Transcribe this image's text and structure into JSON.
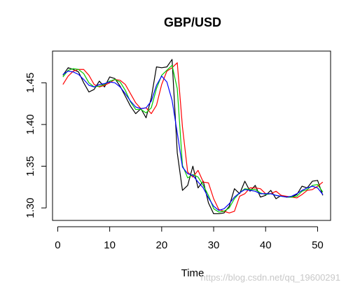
{
  "chart_data": {
    "type": "line",
    "title": "GBP/USD",
    "xlabel": "Time",
    "ylabel": "",
    "xlim": [
      -1,
      52.5
    ],
    "ylim": [
      1.285,
      1.488
    ],
    "xticks": [
      0,
      10,
      20,
      30,
      40,
      50
    ],
    "yticks": [
      1.3,
      1.35,
      1.4,
      1.45
    ],
    "xtick_labels": [
      "0",
      "10",
      "20",
      "30",
      "40",
      "50"
    ],
    "ytick_labels": [
      "1.30",
      "1.35",
      "1.40",
      "1.45"
    ],
    "grid": false,
    "legend": "none",
    "x": [
      1,
      2,
      3,
      4,
      5,
      6,
      7,
      8,
      9,
      10,
      11,
      12,
      13,
      14,
      15,
      16,
      17,
      18,
      19,
      20,
      21,
      22,
      23,
      24,
      25,
      26,
      27,
      28,
      29,
      30,
      31,
      32,
      33,
      34,
      35,
      36,
      37,
      38,
      39,
      40,
      41,
      42,
      43,
      44,
      45,
      46,
      47,
      48,
      49,
      50,
      51
    ],
    "series": [
      {
        "color": "#000000",
        "values": [
          1.459,
          1.468,
          1.466,
          1.463,
          1.45,
          1.439,
          1.442,
          1.452,
          1.445,
          1.457,
          1.455,
          1.446,
          1.434,
          1.422,
          1.413,
          1.419,
          1.408,
          1.432,
          1.469,
          1.468,
          1.469,
          1.478,
          1.366,
          1.321,
          1.327,
          1.35,
          1.324,
          1.332,
          1.306,
          1.293,
          1.293,
          1.294,
          1.302,
          1.323,
          1.317,
          1.332,
          1.32,
          1.327,
          1.313,
          1.315,
          1.321,
          1.311,
          1.315,
          1.313,
          1.313,
          1.316,
          1.326,
          1.324,
          1.332,
          1.333,
          1.315
        ]
      },
      {
        "color": "#ff0000",
        "values": [
          1.448,
          1.458,
          1.464,
          1.466,
          1.466,
          1.459,
          1.448,
          1.445,
          1.447,
          1.45,
          1.454,
          1.453,
          1.448,
          1.437,
          1.426,
          1.419,
          1.42,
          1.413,
          1.423,
          1.448,
          1.464,
          1.468,
          1.474,
          1.397,
          1.343,
          1.337,
          1.345,
          1.331,
          1.33,
          1.311,
          1.298,
          1.296,
          1.294,
          1.296,
          1.314,
          1.317,
          1.324,
          1.324,
          1.323,
          1.317,
          1.317,
          1.32,
          1.315,
          1.314,
          1.313,
          1.312,
          1.316,
          1.321,
          1.322,
          1.326,
          1.331
        ]
      },
      {
        "color": "#00cc00",
        "values": [
          1.457,
          1.465,
          1.467,
          1.466,
          1.461,
          1.45,
          1.445,
          1.446,
          1.448,
          1.452,
          1.454,
          1.451,
          1.441,
          1.427,
          1.418,
          1.418,
          1.414,
          1.42,
          1.443,
          1.459,
          1.465,
          1.471,
          1.443,
          1.351,
          1.336,
          1.34,
          1.337,
          1.327,
          1.315,
          1.299,
          1.295,
          1.296,
          1.3,
          1.311,
          1.318,
          1.323,
          1.322,
          1.322,
          1.318,
          1.316,
          1.317,
          1.315,
          1.314,
          1.313,
          1.313,
          1.314,
          1.32,
          1.322,
          1.327,
          1.328,
          1.319
        ]
      },
      {
        "color": "#0000ff",
        "values": [
          1.46,
          1.464,
          1.463,
          1.46,
          1.454,
          1.447,
          1.445,
          1.448,
          1.449,
          1.451,
          1.45,
          1.445,
          1.437,
          1.428,
          1.421,
          1.419,
          1.42,
          1.428,
          1.447,
          1.458,
          1.451,
          1.429,
          1.39,
          1.349,
          1.341,
          1.339,
          1.331,
          1.324,
          1.312,
          1.302,
          1.297,
          1.299,
          1.305,
          1.313,
          1.318,
          1.322,
          1.321,
          1.32,
          1.317,
          1.317,
          1.317,
          1.315,
          1.314,
          1.313,
          1.314,
          1.317,
          1.321,
          1.324,
          1.326,
          1.324,
          1.316
        ]
      }
    ]
  },
  "watermark": "https://blog.csdn.net/qq_19600291"
}
